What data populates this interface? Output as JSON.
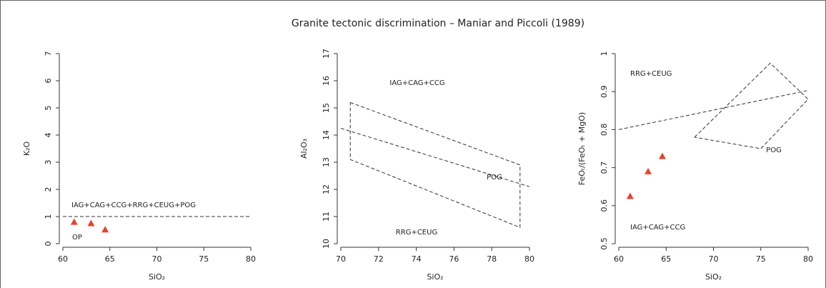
{
  "title": "Granite tectonic discrimination – Maniar and Piccoli (1989)",
  "chart_data": [
    {
      "type": "scatter",
      "xlabel": "SiO₂",
      "ylabel": "K₂O",
      "xlim": [
        60,
        80
      ],
      "xticks": [
        60,
        65,
        70,
        75,
        80
      ],
      "ylim": [
        0,
        7
      ],
      "yticks": [
        0,
        1,
        2,
        3,
        4,
        5,
        6,
        7
      ],
      "x": [
        61.2,
        63,
        64.5
      ],
      "values": [
        0.8,
        0.75,
        0.52
      ],
      "color": "#e8432b",
      "boundaries": [
        {
          "x": [
            60,
            80
          ],
          "y": [
            1,
            1
          ]
        }
      ],
      "annotations": [
        "IAG+CAG+CCG+RRG+CEUG+POG",
        "OP"
      ]
    },
    {
      "type": "scatter",
      "xlabel": "SiO₂",
      "ylabel": "Al₂O₃",
      "xlim": [
        70,
        80
      ],
      "xticks": [
        70,
        72,
        74,
        76,
        78,
        80
      ],
      "ylim": [
        10,
        17
      ],
      "yticks": [
        10,
        11,
        12,
        13,
        14,
        15,
        16,
        17
      ],
      "x": [],
      "values": [],
      "color": "#e8432b",
      "boundaries": [
        {
          "x": [
            70.5,
            79.5,
            79.5,
            70.5,
            70.5
          ],
          "y": [
            15.2,
            12.9,
            10.6,
            13.1,
            15.2
          ]
        },
        {
          "x": [
            70,
            80
          ],
          "y": [
            14.25,
            12.1
          ]
        }
      ],
      "annotations": [
        "IAG+CAG+CCG",
        "POG",
        "RRG+CEUG"
      ]
    },
    {
      "type": "scatter",
      "xlabel": "SiO₂",
      "ylabel": "FeOₜ/(FeOₜ + MgO)",
      "xlim": [
        60,
        80
      ],
      "xticks": [
        60,
        65,
        70,
        75,
        80
      ],
      "ylim": [
        0.5,
        1
      ],
      "yticks": [
        0.5,
        0.6,
        0.7,
        0.8,
        0.9,
        1
      ],
      "x": [
        61.2,
        63.1,
        64.6
      ],
      "values": [
        0.625,
        0.69,
        0.73
      ],
      "color": "#e8432b",
      "boundaries": [
        {
          "x": [
            60,
            80
          ],
          "y": [
            0.8,
            0.903
          ]
        },
        {
          "x": [
            68,
            76,
            80,
            75,
            68
          ],
          "y": [
            0.78,
            0.975,
            0.88,
            0.75,
            0.78
          ]
        }
      ],
      "annotations": [
        "RRG+CEUG",
        "POG",
        "IAG+CAG+CCG"
      ]
    }
  ]
}
